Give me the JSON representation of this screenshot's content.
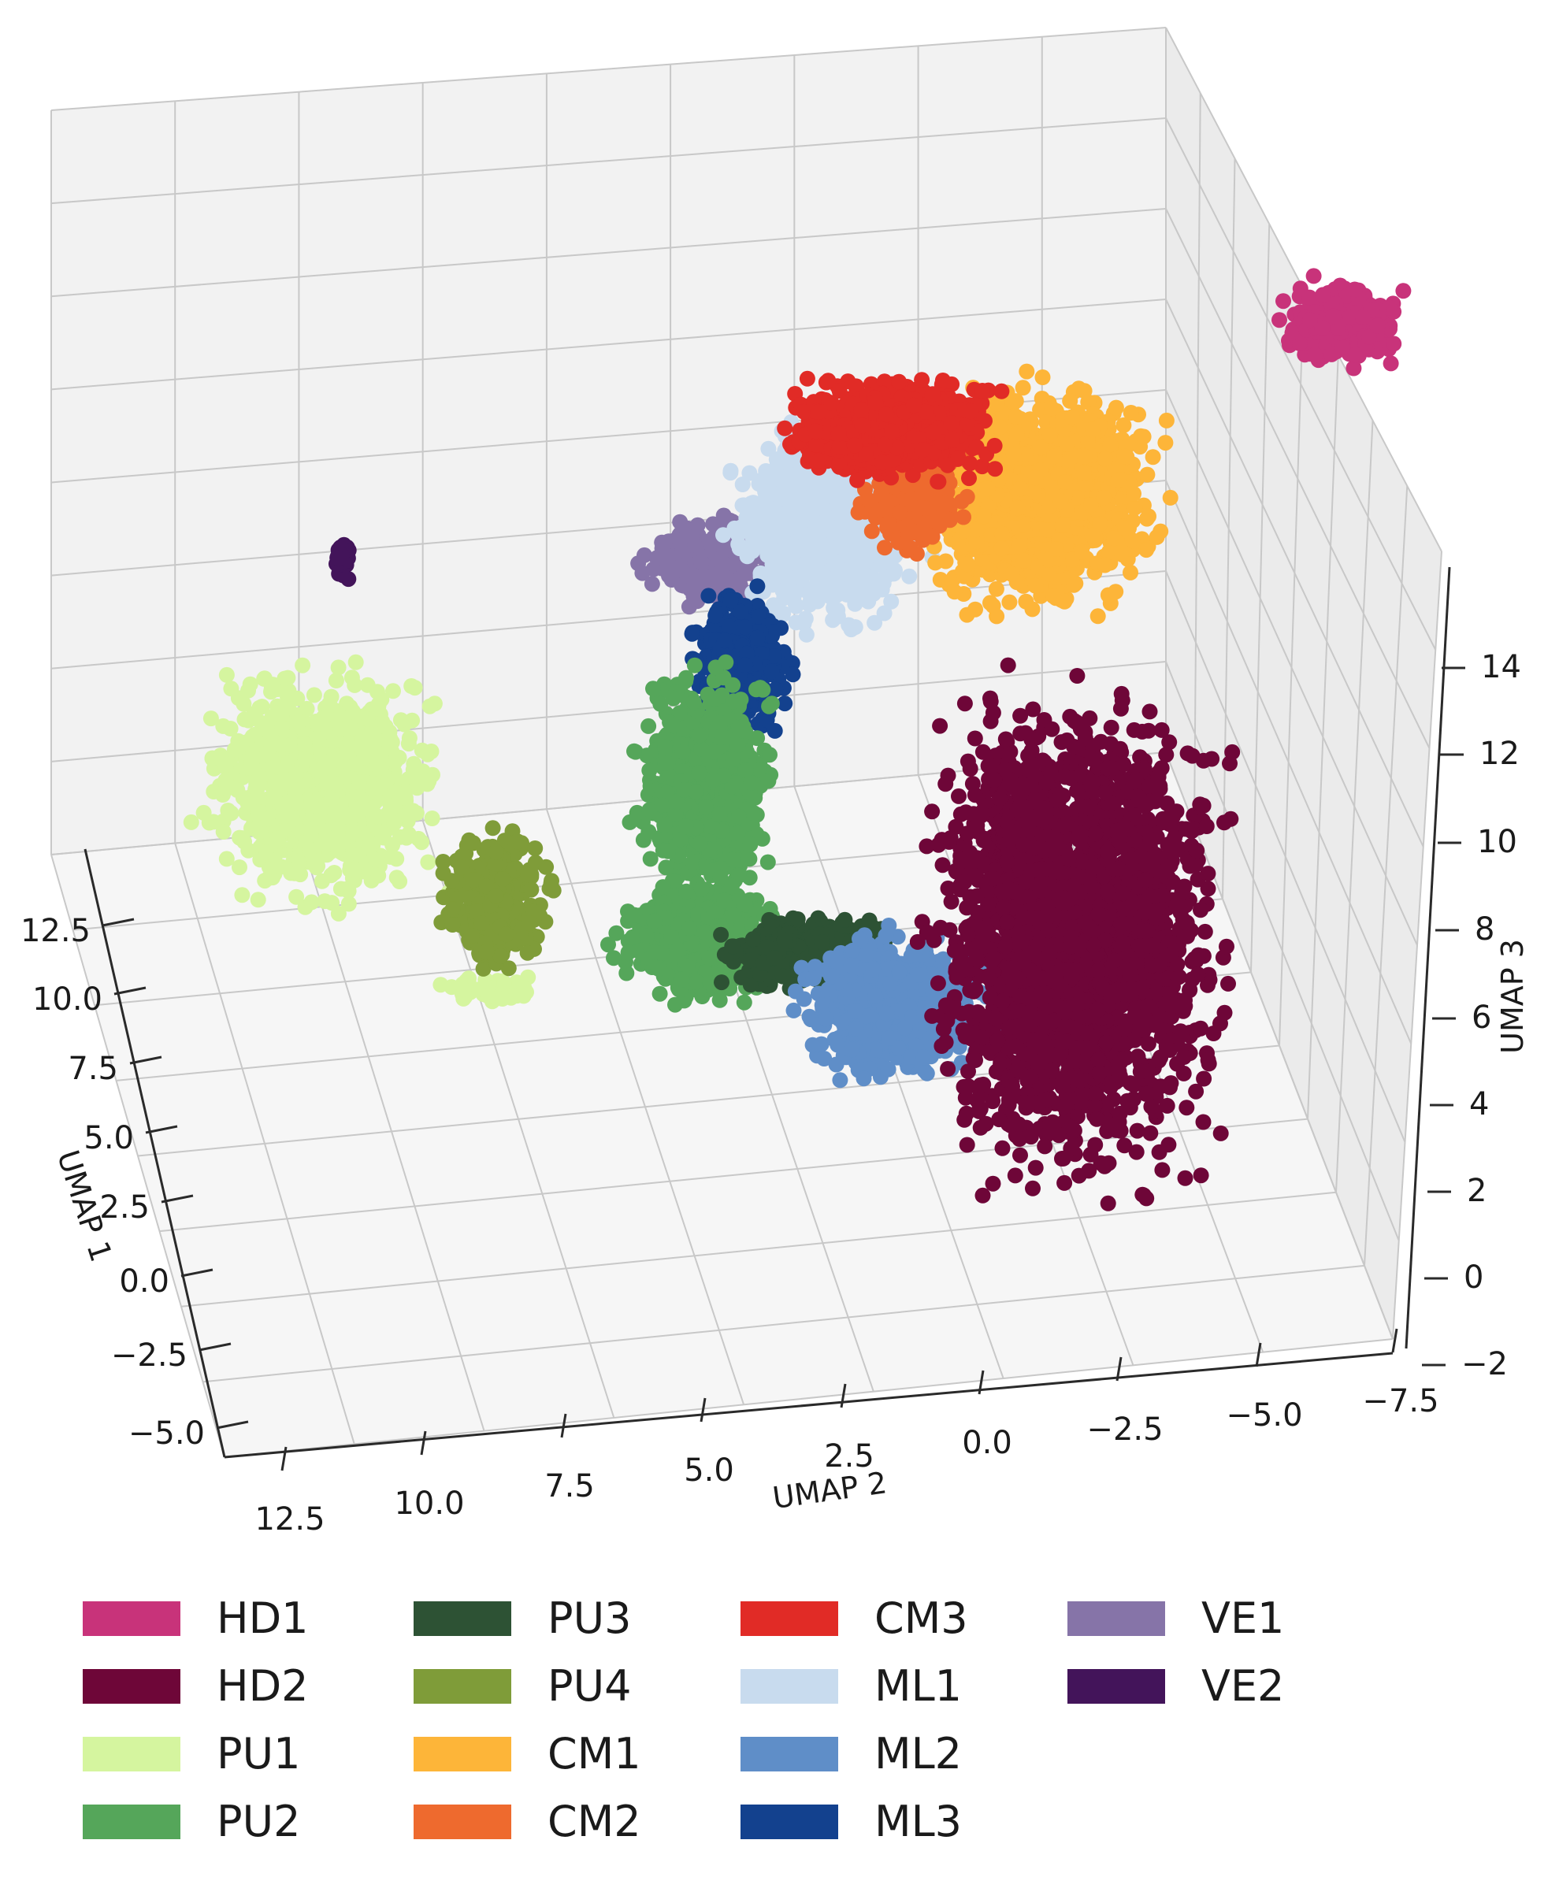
{
  "chart_data": {
    "type": "scatter",
    "projection": "3d",
    "title": "",
    "xlabel": "UMAP 1",
    "ylabel": "UMAP 2",
    "zlabel": "UMAP 3",
    "xlim": [
      -5.0,
      12.5
    ],
    "ylim": [
      -7.5,
      12.5
    ],
    "zlim": [
      -2,
      14
    ],
    "xticks": [
      "12.5",
      "10.0",
      "7.5",
      "5.0",
      "2.5",
      "0.0",
      "−2.5",
      "−5.0"
    ],
    "yticks": [
      "12.5",
      "10.0",
      "7.5",
      "5.0",
      "2.5",
      "0.0",
      "−2.5",
      "−5.0",
      "−7.5"
    ],
    "zticks": [
      "14",
      "12",
      "10",
      "8",
      "6",
      "4",
      "2",
      "0",
      "−2"
    ],
    "grid": true,
    "legend_position": "bottom",
    "series": [
      {
        "name": "HD1",
        "color": "#c8337a",
        "clusters": [
          {
            "u": 0.86,
            "v": 0.172,
            "rx": 0.03,
            "ry": 0.018,
            "n": 260
          }
        ]
      },
      {
        "name": "HD2",
        "color": "#6e0638",
        "clusters": [
          {
            "u": 0.69,
            "v": 0.5,
            "rx": 0.075,
            "ry": 0.105,
            "n": 2400
          },
          {
            "u": 0.655,
            "v": 0.448,
            "rx": 0.02,
            "ry": 0.03,
            "n": 200
          }
        ]
      },
      {
        "name": "PU1",
        "color": "#d5f59f",
        "clusters": [
          {
            "u": 0.205,
            "v": 0.42,
            "rx": 0.06,
            "ry": 0.05,
            "n": 900
          },
          {
            "u": 0.315,
            "v": 0.527,
            "rx": 0.025,
            "ry": 0.006,
            "n": 60
          }
        ]
      },
      {
        "name": "PU2",
        "color": "#55a65a",
        "clusters": [
          {
            "u": 0.452,
            "v": 0.42,
            "rx": 0.035,
            "ry": 0.05,
            "n": 700
          },
          {
            "u": 0.45,
            "v": 0.503,
            "rx": 0.042,
            "ry": 0.025,
            "n": 650
          }
        ]
      },
      {
        "name": "PU3",
        "color": "#2d5234",
        "clusters": [
          {
            "u": 0.52,
            "v": 0.508,
            "rx": 0.045,
            "ry": 0.016,
            "n": 500
          }
        ]
      },
      {
        "name": "PU4",
        "color": "#7f9c39",
        "clusters": [
          {
            "u": 0.318,
            "v": 0.48,
            "rx": 0.03,
            "ry": 0.03,
            "n": 360
          }
        ]
      },
      {
        "name": "CM1",
        "color": "#fdb539",
        "clusters": [
          {
            "u": 0.668,
            "v": 0.265,
            "rx": 0.06,
            "ry": 0.048,
            "n": 1300
          }
        ]
      },
      {
        "name": "CM2",
        "color": "#ee6a2e",
        "clusters": [
          {
            "u": 0.585,
            "v": 0.262,
            "rx": 0.028,
            "ry": 0.028,
            "n": 300
          }
        ]
      },
      {
        "name": "CM3",
        "color": "#e12b26",
        "clusters": [
          {
            "u": 0.57,
            "v": 0.228,
            "rx": 0.055,
            "ry": 0.022,
            "n": 800
          }
        ]
      },
      {
        "name": "ML1",
        "color": "#c8dbee",
        "clusters": [
          {
            "u": 0.53,
            "v": 0.28,
            "rx": 0.048,
            "ry": 0.045,
            "n": 900
          }
        ]
      },
      {
        "name": "ML2",
        "color": "#5f8ec8",
        "clusters": [
          {
            "u": 0.578,
            "v": 0.535,
            "rx": 0.05,
            "ry": 0.03,
            "n": 800
          }
        ]
      },
      {
        "name": "ML3",
        "color": "#13418e",
        "clusters": [
          {
            "u": 0.476,
            "v": 0.352,
            "rx": 0.025,
            "ry": 0.032,
            "n": 360
          }
        ]
      },
      {
        "name": "VE1",
        "color": "#8674a8",
        "clusters": [
          {
            "u": 0.455,
            "v": 0.3,
            "rx": 0.032,
            "ry": 0.018,
            "n": 280
          }
        ]
      },
      {
        "name": "VE2",
        "color": "#43145a",
        "clusters": [
          {
            "u": 0.22,
            "v": 0.297,
            "rx": 0.004,
            "ry": 0.01,
            "n": 40
          }
        ]
      }
    ]
  }
}
